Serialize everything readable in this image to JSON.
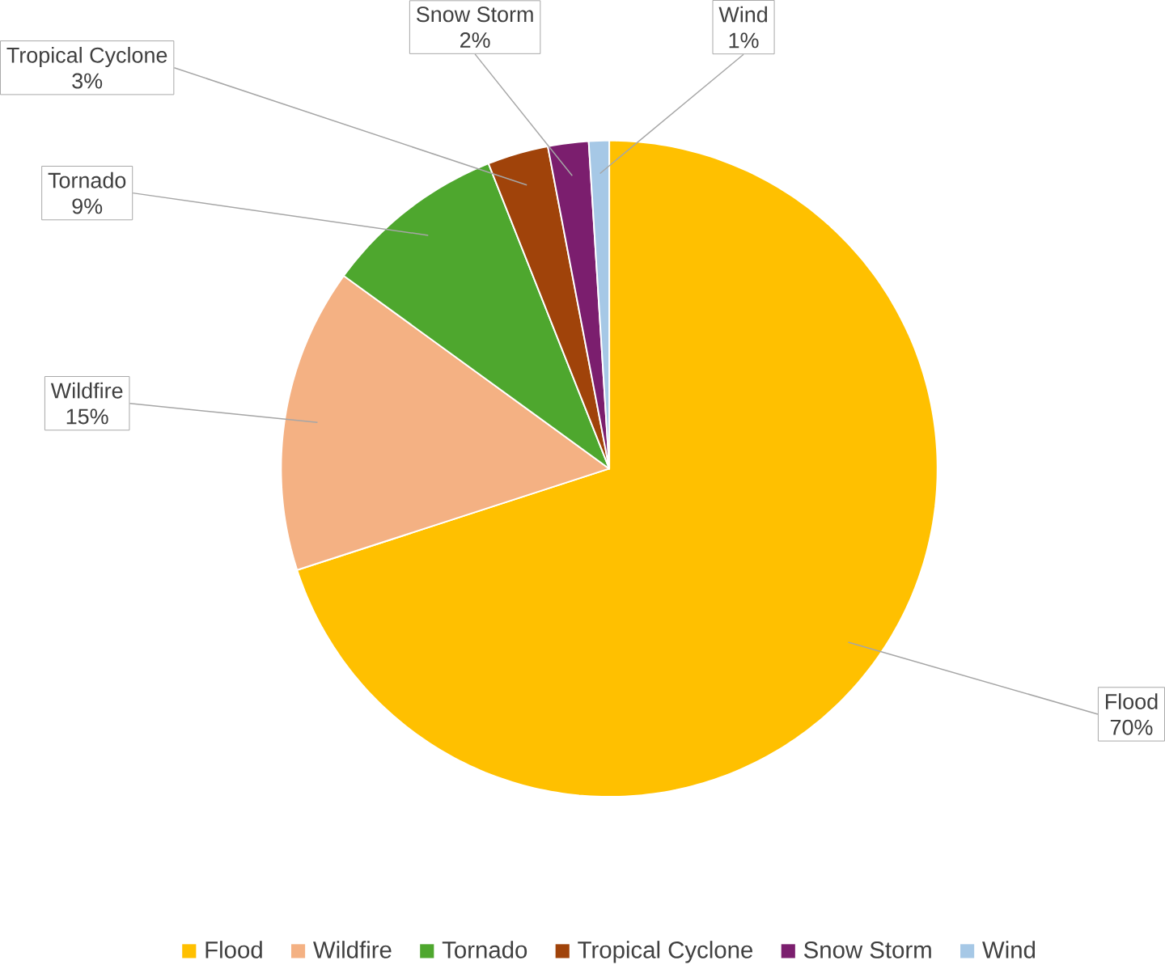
{
  "chart_data": {
    "type": "pie",
    "categories": [
      "Flood",
      "Wildfire",
      "Tornado",
      "Tropical Cyclone",
      "Snow Storm",
      "Wind"
    ],
    "values": [
      70,
      15,
      9,
      3,
      2,
      1
    ],
    "value_labels": [
      "70%",
      "15%",
      "9%",
      "3%",
      "2%",
      "1%"
    ],
    "colors": [
      "#ffc000",
      "#f4b183",
      "#4ea72e",
      "#a0430a",
      "#7b1e6e",
      "#a6c8e6"
    ],
    "legend": "bottom"
  }
}
